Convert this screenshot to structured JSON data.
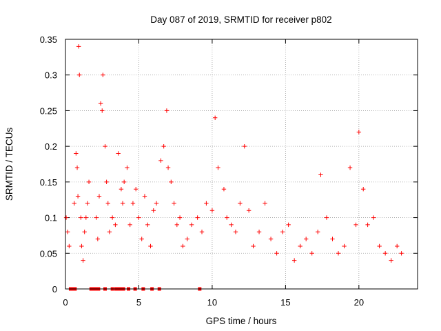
{
  "chart_data": {
    "type": "scatter",
    "title": "Day 087 of 2019, SRMTID for receiver p802",
    "xlabel": "GPS time / hours",
    "ylabel": "SRMTID / TECUs",
    "xlim": [
      0,
      24
    ],
    "ylim": [
      0,
      0.35
    ],
    "grid": true,
    "marker": "+",
    "color": "#ff0000",
    "x_ticks": [
      0,
      5,
      10,
      15,
      20
    ],
    "x_tick_labels": [
      "0",
      "5",
      "10",
      "15",
      "20"
    ],
    "y_ticks": [
      0,
      0.05,
      0.1,
      0.15,
      0.2,
      0.25,
      0.3,
      0.35
    ],
    "y_tick_labels": [
      "0",
      "0.05",
      "0.1",
      "0.15",
      "0.2",
      "0.25",
      "0.3",
      "0.35"
    ],
    "zero_markers_x": [
      0.35,
      0.55,
      0.65,
      1.75,
      1.9,
      2.05,
      2.25,
      2.7,
      3.2,
      3.45,
      3.6,
      3.75,
      3.95,
      4.3,
      4.75,
      5.3,
      5.9,
      6.4,
      9.15
    ],
    "series": [
      {
        "name": "SRMTID",
        "x": [
          0.05,
          0.15,
          0.25,
          0.6,
          0.72,
          0.8,
          0.85,
          0.9,
          0.95,
          1.05,
          1.1,
          1.2,
          1.3,
          1.4,
          1.5,
          1.6,
          2.1,
          2.2,
          2.3,
          2.4,
          2.5,
          2.55,
          2.7,
          2.8,
          2.9,
          3.0,
          3.2,
          3.4,
          3.6,
          3.8,
          3.9,
          4.0,
          4.2,
          4.4,
          4.6,
          4.8,
          5.0,
          5.2,
          5.4,
          5.6,
          5.8,
          6.0,
          6.2,
          6.5,
          6.7,
          6.9,
          7.0,
          7.2,
          7.4,
          7.6,
          7.8,
          8.0,
          8.3,
          8.6,
          9.0,
          9.3,
          9.6,
          10.0,
          10.2,
          10.4,
          10.8,
          11.0,
          11.3,
          11.6,
          11.9,
          12.2,
          12.5,
          12.8,
          13.2,
          13.6,
          14.0,
          14.4,
          14.8,
          15.2,
          15.6,
          16.0,
          16.4,
          16.8,
          17.2,
          17.4,
          17.8,
          18.2,
          18.6,
          19.0,
          19.4,
          19.8,
          20.0,
          20.3,
          20.6,
          21.0,
          21.4,
          21.8,
          22.2,
          22.6,
          22.9
        ],
        "y": [
          0.1,
          0.08,
          0.06,
          0.12,
          0.19,
          0.17,
          0.13,
          0.34,
          0.3,
          0.1,
          0.06,
          0.04,
          0.08,
          0.1,
          0.12,
          0.15,
          0.1,
          0.07,
          0.13,
          0.26,
          0.25,
          0.3,
          0.2,
          0.15,
          0.12,
          0.08,
          0.1,
          0.09,
          0.19,
          0.14,
          0.12,
          0.15,
          0.17,
          0.09,
          0.12,
          0.14,
          0.1,
          0.07,
          0.13,
          0.09,
          0.06,
          0.11,
          0.12,
          0.18,
          0.2,
          0.25,
          0.17,
          0.15,
          0.12,
          0.09,
          0.1,
          0.06,
          0.07,
          0.09,
          0.1,
          0.08,
          0.12,
          0.11,
          0.24,
          0.17,
          0.14,
          0.1,
          0.09,
          0.08,
          0.12,
          0.2,
          0.11,
          0.06,
          0.08,
          0.12,
          0.07,
          0.05,
          0.08,
          0.09,
          0.04,
          0.06,
          0.07,
          0.05,
          0.08,
          0.16,
          0.1,
          0.07,
          0.05,
          0.06,
          0.17,
          0.09,
          0.22,
          0.14,
          0.09,
          0.1,
          0.06,
          0.05,
          0.04,
          0.06,
          0.05
        ]
      }
    ]
  }
}
